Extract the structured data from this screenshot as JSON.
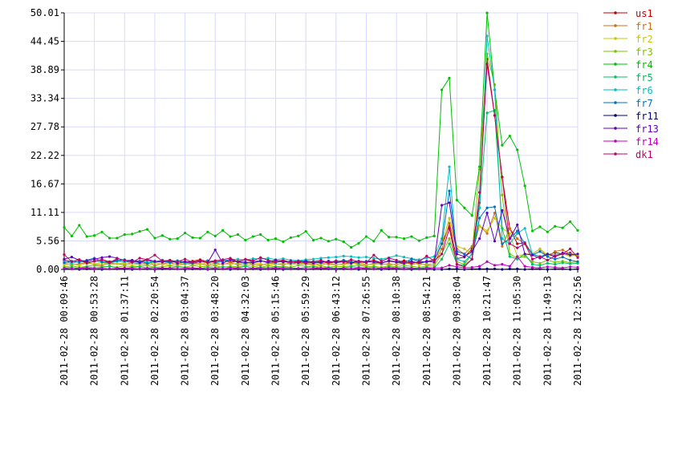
{
  "chart_data": {
    "type": "line",
    "categories": [
      "2011-02-28 00:09:46",
      null,
      null,
      null,
      "2011-02-28 00:53:28",
      null,
      null,
      null,
      "2011-02-28 01:37:11",
      null,
      null,
      null,
      "2011-02-28 02:20:54",
      null,
      null,
      null,
      "2011-02-28 03:04:37",
      null,
      null,
      null,
      "2011-02-28 03:48:20",
      null,
      null,
      null,
      "2011-02-28 04:32:03",
      null,
      null,
      null,
      "2011-02-28 05:15:46",
      null,
      null,
      null,
      "2011-02-28 05:59:29",
      null,
      null,
      null,
      "2011-02-28 06:43:12",
      null,
      null,
      null,
      "2011-02-28 07:26:55",
      null,
      null,
      null,
      "2011-02-28 08:10:38",
      null,
      null,
      null,
      "2011-02-28 08:54:21",
      null,
      null,
      null,
      "2011-02-28 09:38:04",
      null,
      null,
      null,
      "2011-02-28 10:21:47",
      null,
      null,
      null,
      "2011-02-28 11:05:30",
      null,
      null,
      null,
      "2011-02-28 11:49:13",
      null,
      null,
      null,
      "2011-02-28 12:32:56"
    ],
    "ylim": [
      0,
      50.01
    ],
    "yticks": [
      {
        "value": 0,
        "label": "0.00"
      },
      5.56,
      11.11,
      16.67,
      22.22,
      27.78,
      33.34,
      38.89,
      44.45,
      50.01
    ],
    "grid": true,
    "legend": "right",
    "series": [
      {
        "name": "us1",
        "color": "#c00000",
        "values": [
          1.8,
          1.5,
          1.9,
          1.4,
          1.6,
          1.9,
          1.5,
          1.8,
          1.4,
          1.7,
          1.6,
          1.9,
          1.3,
          1.8,
          1.5,
          1.7,
          1.4,
          1.6,
          1.9,
          1.5,
          1.7,
          1.8,
          1.4,
          1.6,
          1.9,
          1.5,
          1.7,
          1.3,
          1.6,
          1.8,
          1.4,
          1.7,
          1.5,
          1.3,
          1.6,
          1.2,
          1.5,
          1.7,
          1.4,
          1.6,
          1.5,
          1.8,
          1.3,
          1.6,
          1.4,
          1.7,
          1.5,
          1.2,
          1.5,
          1.9,
          5,
          8.5,
          2.1,
          2.4,
          4,
          13,
          41,
          30,
          18,
          8,
          5,
          5.2,
          3,
          2.5,
          2.8,
          3.3,
          3,
          3.2,
          2.5
        ]
      },
      {
        "name": "fr1",
        "color": "#c87020",
        "values": [
          1.2,
          0.9,
          1.1,
          1.3,
          1,
          0.8,
          1.2,
          1.1,
          0.9,
          1.3,
          1,
          1.2,
          0.8,
          1.1,
          1.3,
          0.9,
          1,
          1.2,
          1.1,
          0.8,
          1.2,
          1,
          1.3,
          0.9,
          1.1,
          1,
          0.8,
          1.2,
          1.1,
          0.9,
          1.3,
          1,
          1.1,
          0.8,
          1.2,
          1,
          0.9,
          1.1,
          1.3,
          1,
          0.8,
          1.2,
          1,
          1.1,
          0.9,
          1.3,
          1,
          1.2,
          0.8,
          1.1,
          4,
          9,
          4,
          3,
          4.5,
          8.5,
          7,
          11,
          4.5,
          8,
          6,
          5,
          3,
          4,
          2.5,
          3.5,
          3.8,
          3,
          2.8
        ]
      },
      {
        "name": "fr2",
        "color": "#c8c800",
        "values": [
          0.9,
          1.1,
          0.8,
          1.2,
          1,
          1.3,
          0.9,
          1.1,
          1.2,
          0.8,
          1.1,
          0.9,
          1.3,
          1,
          0.8,
          1.2,
          1.1,
          0.9,
          1,
          1.3,
          0.8,
          1.1,
          1,
          1.2,
          0.9,
          1.3,
          1.1,
          0.8,
          1,
          1.2,
          0.9,
          1.1,
          1.3,
          1,
          0.8,
          1.2,
          1,
          0.9,
          1.1,
          1.3,
          1,
          0.9,
          1.2,
          0.8,
          1.1,
          1,
          1.3,
          0.9,
          1.1,
          1,
          5,
          10,
          4.5,
          4,
          3,
          8.5,
          7.5,
          10,
          8,
          7,
          2.5,
          3,
          3,
          4,
          2.8,
          2.5,
          3,
          2.6,
          2.8
        ]
      },
      {
        "name": "fr3",
        "color": "#80c000",
        "values": [
          0.5,
          0.7,
          0.4,
          0.6,
          0.8,
          0.5,
          0.6,
          0.4,
          0.7,
          0.5,
          0.6,
          0.8,
          0.4,
          0.5,
          0.7,
          0.6,
          0.4,
          0.8,
          0.5,
          0.6,
          0.7,
          0.4,
          0.6,
          0.5,
          0.8,
          0.6,
          0.4,
          0.7,
          0.5,
          0.6,
          0.4,
          0.8,
          0.6,
          0.5,
          0.7,
          0.4,
          0.6,
          0.5,
          0.7,
          0.8,
          0.5,
          0.6,
          0.4,
          0.7,
          0.5,
          0.8,
          0.6,
          0.4,
          0.6,
          0.7,
          3,
          6,
          1.5,
          1,
          3,
          19.5,
          42,
          36,
          14.5,
          3,
          2.2,
          2.5,
          1.5,
          1.2,
          1.8,
          1.4,
          1.6,
          1.3,
          1.5
        ]
      },
      {
        "name": "fr4",
        "color": "#00c000",
        "values": [
          8.2,
          6.5,
          8.6,
          6.4,
          6.6,
          7.3,
          6.1,
          6.1,
          6.8,
          6.9,
          7.4,
          7.8,
          6.1,
          6.6,
          5.9,
          6,
          7.1,
          6.2,
          6.1,
          7.3,
          6.5,
          7.6,
          6.4,
          6.8,
          5.7,
          6.4,
          6.8,
          5.7,
          6,
          5.4,
          6.2,
          6.5,
          7.4,
          5.7,
          6.1,
          5.5,
          5.9,
          5.4,
          4.3,
          5.1,
          6.4,
          5.5,
          7.6,
          6.3,
          6.3,
          6,
          6.4,
          5.6,
          6.2,
          6.5,
          35,
          37.3,
          13.5,
          12,
          10.5,
          20,
          50,
          35,
          24.2,
          26,
          23.3,
          16.3,
          7.5,
          8.3,
          7.3,
          8.4,
          8.1,
          9.3,
          7.6
        ]
      },
      {
        "name": "fr5",
        "color": "#00c060",
        "values": [
          0.3,
          0.4,
          0.2,
          0.5,
          0.3,
          0.4,
          0.6,
          0.3,
          0.2,
          0.4,
          0.5,
          0.3,
          0.4,
          0.2,
          0.3,
          0.5,
          0.4,
          0.3,
          0.2,
          0.4,
          0.3,
          0.5,
          0.4,
          0.3,
          0.6,
          0.2,
          0.4,
          0.3,
          0.5,
          0.4,
          0.3,
          0.2,
          0.4,
          0.5,
          0.3,
          0.4,
          0.2,
          0.3,
          0.5,
          0.4,
          0.3,
          0.4,
          0.2,
          0.5,
          0.3,
          0.4,
          0.3,
          0.2,
          0.4,
          0.3,
          2,
          5,
          1,
          0.8,
          2,
          12,
          30.5,
          31,
          8,
          2.5,
          2,
          3,
          1,
          0.8,
          1.2,
          1,
          1.3,
          1.1,
          1.2
        ]
      },
      {
        "name": "fr6",
        "color": "#00c0c0",
        "values": [
          1.5,
          1.2,
          1.6,
          1.3,
          1.7,
          1.4,
          1.2,
          1.6,
          1.5,
          1.3,
          1.2,
          1.6,
          1.4,
          1.5,
          1.3,
          1.7,
          1.2,
          1.4,
          1.6,
          1.3,
          1.5,
          1.7,
          1.9,
          2,
          1.8,
          2.1,
          2,
          2.2,
          1.9,
          2.1,
          1.8,
          1.7,
          1.9,
          2,
          2.2,
          2.3,
          2.4,
          2.6,
          2.5,
          2.3,
          2.4,
          2.2,
          2,
          2.3,
          2.7,
          2.4,
          2.1,
          1.9,
          2.2,
          2.5,
          6,
          20,
          2,
          1.5,
          3,
          12,
          45.5,
          35,
          6,
          5,
          7,
          8,
          3,
          2.5,
          3,
          2.8,
          3.1,
          2.9,
          3
        ]
      },
      {
        "name": "fr7",
        "color": "#0070c0",
        "values": [
          1.3,
          1.6,
          1.4,
          1.8,
          2.2,
          1.5,
          1.3,
          1.7,
          1.9,
          1.4,
          1.6,
          1.2,
          1.5,
          1.8,
          1.3,
          1.6,
          1.4,
          1.2,
          1.5,
          1.7,
          1.3,
          1.6,
          1.8,
          1.4,
          1.2,
          1.5,
          1.7,
          1.4,
          1.3,
          1.6,
          1.2,
          1.4,
          1.7,
          1.5,
          1.3,
          1.6,
          1.4,
          1.8,
          1.5,
          1.3,
          1.6,
          1.4,
          1.2,
          1.7,
          1.5,
          1.3,
          2,
          1.6,
          1.4,
          1.8,
          5,
          15.3,
          3.5,
          3,
          2,
          10,
          12,
          12.2,
          5,
          6,
          7.5,
          5,
          2.8,
          3.5,
          2.5,
          2,
          2.4,
          1.8,
          1.5
        ]
      },
      {
        "name": "fr11",
        "color": "#000080",
        "values": [
          0.1,
          0.1,
          0,
          0.1,
          0.1,
          0,
          0.1,
          0.1,
          0.1,
          0,
          0.1,
          0.1,
          0,
          0.1,
          0.1,
          0.1,
          0,
          0.1,
          0.1,
          0,
          0.1,
          0.1,
          0,
          0.1,
          0.1,
          0.1,
          0,
          0.1,
          0.1,
          0,
          0.1,
          0.1,
          0,
          0.1,
          0.1,
          0.1,
          0,
          0.1,
          0.1,
          0,
          0.1,
          0.1,
          0,
          0.1,
          0.1,
          0.1,
          0,
          0.1,
          0.1,
          0,
          0,
          0.1,
          0.1,
          0,
          0.1,
          0.1,
          0.1,
          0.1,
          0,
          0.1,
          0.1,
          0,
          0.1,
          0.1,
          0,
          0.1,
          0.1,
          0,
          0.1
        ]
      },
      {
        "name": "fr13",
        "color": "#6000c0",
        "values": [
          2,
          2.4,
          1.8,
          1.6,
          2,
          2.3,
          2.5,
          2.2,
          1.7,
          1.8,
          1.3,
          1.9,
          1.6,
          1.4,
          1.8,
          1.2,
          1.5,
          1.4,
          1.6,
          1.3,
          3.8,
          1.2,
          1.9,
          1.5,
          1.4,
          1.3,
          1.6,
          1.5,
          1.8,
          1.4,
          1.6,
          1.3,
          1.5,
          1.2,
          1.4,
          1.6,
          1.3,
          1.5,
          1.2,
          1.6,
          1.4,
          1.5,
          1.3,
          1.7,
          1.4,
          1.2,
          1.5,
          1.3,
          1.6,
          1.4,
          12.5,
          13,
          3,
          2.5,
          3.5,
          6,
          11,
          5.5,
          11.5,
          6,
          8.7,
          3,
          2.8,
          2.2,
          3,
          2.5,
          3.2,
          2.8,
          3
        ]
      },
      {
        "name": "fr14",
        "color": "#c000c0",
        "values": [
          0.2,
          0.1,
          0.2,
          0.3,
          0.1,
          0.2,
          0.1,
          0.2,
          0.3,
          0.2,
          0.1,
          0.2,
          0.1,
          0.3,
          0.2,
          0.1,
          0.2,
          0.3,
          0.2,
          0.1,
          0.2,
          0.1,
          0.3,
          0.2,
          0.1,
          0.2,
          0.2,
          0.1,
          0.3,
          0.2,
          0.1,
          0.2,
          0.1,
          0.2,
          0.3,
          0.2,
          0.1,
          0.2,
          0.1,
          0.3,
          0.2,
          0.1,
          0.2,
          0.3,
          0.2,
          0.1,
          0.2,
          0.1,
          0.2,
          0.3,
          0.3,
          0.8,
          0.5,
          0.3,
          0.4,
          0.6,
          1.5,
          0.8,
          1,
          0.6,
          2.5,
          0.6,
          0.4,
          0.3,
          0.5,
          0.4,
          0.3,
          0.5,
          0.4
        ]
      },
      {
        "name": "dk1",
        "color": "#c00060",
        "values": [
          2.9,
          1.5,
          1.9,
          1.2,
          1.6,
          1.9,
          1.3,
          2.1,
          1.8,
          1.4,
          2.2,
          1.9,
          2.8,
          1.6,
          1.8,
          1.5,
          2,
          1.4,
          1.7,
          1.3,
          1.6,
          1.9,
          2.2,
          1.5,
          2,
          1.7,
          2.3,
          1.8,
          1.5,
          1.7,
          1.4,
          1.6,
          1.2,
          1.5,
          1.8,
          1.3,
          1.7,
          1.4,
          1.9,
          1.5,
          1.3,
          2.8,
          1.6,
          2.2,
          1.8,
          1.4,
          1.2,
          1.5,
          2.6,
          1.7,
          3,
          8,
          1,
          0.5,
          2,
          15,
          40,
          30,
          18,
          5,
          4.2,
          5,
          2,
          2.5,
          1.8,
          2.6,
          3,
          4,
          2.3
        ]
      }
    ]
  }
}
